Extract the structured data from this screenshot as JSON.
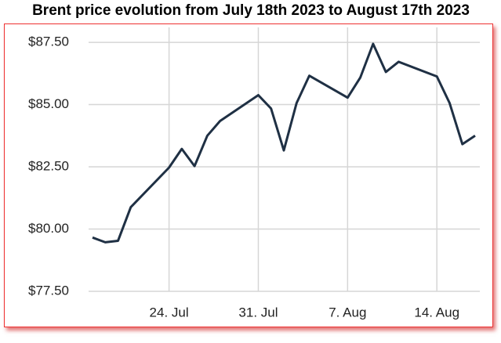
{
  "chart_data": {
    "type": "line",
    "title": "Brent price evolution from July 18th 2023 to August 17th 2023",
    "x": [
      "2023-07-18",
      "2023-07-19",
      "2023-07-20",
      "2023-07-21",
      "2023-07-24",
      "2023-07-25",
      "2023-07-26",
      "2023-07-27",
      "2023-07-28",
      "2023-07-31",
      "2023-08-01",
      "2023-08-02",
      "2023-08-03",
      "2023-08-04",
      "2023-08-07",
      "2023-08-08",
      "2023-08-09",
      "2023-08-10",
      "2023-08-11",
      "2023-08-14",
      "2023-08-15",
      "2023-08-16",
      "2023-08-17"
    ],
    "values": [
      79.66,
      79.47,
      79.53,
      80.88,
      82.47,
      83.22,
      82.53,
      83.75,
      84.34,
      85.38,
      84.84,
      83.16,
      85.06,
      86.16,
      85.28,
      86.09,
      87.44,
      86.31,
      86.72,
      86.13,
      85.06,
      83.41,
      83.75
    ],
    "color": "#1f3044",
    "xlim": [
      "2023-07-18",
      "2023-08-17"
    ],
    "xticks": [
      {
        "value": "2023-07-24",
        "label": "24. Jul"
      },
      {
        "value": "2023-07-31",
        "label": "31. Jul"
      },
      {
        "value": "2023-08-07",
        "label": "7. Aug"
      },
      {
        "value": "2023-08-14",
        "label": "14. Aug"
      }
    ],
    "ylim": [
      77.5,
      88.1
    ],
    "yticks": [
      {
        "value": 77.5,
        "label": "$77.50"
      },
      {
        "value": 80,
        "label": "$80.00"
      },
      {
        "value": 82.5,
        "label": "$82.50"
      },
      {
        "value": 85,
        "label": "$85.00"
      },
      {
        "value": 87.5,
        "label": "$87.50"
      }
    ],
    "grid": true
  }
}
